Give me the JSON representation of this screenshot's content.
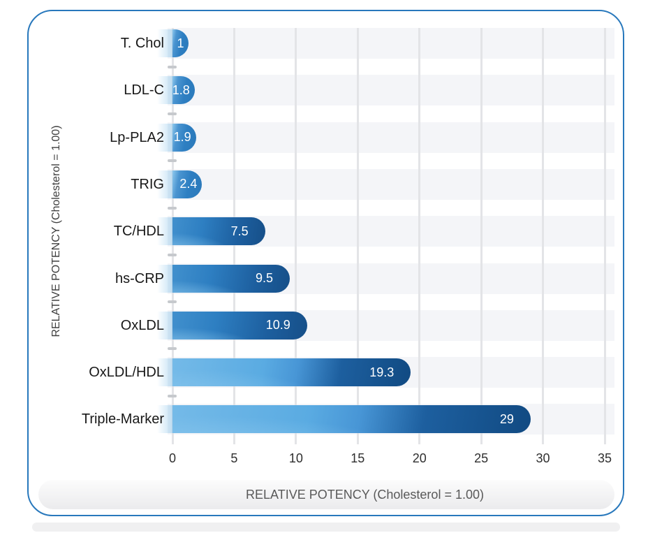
{
  "chart_data": {
    "type": "bar",
    "orientation": "horizontal",
    "title": "",
    "categories": [
      "T. Chol",
      "LDL-C",
      "Lp-PLA2",
      "TRIG",
      "TC/HDL",
      "hs-CRP",
      "OxLDL",
      "OxLDL/HDL",
      "Triple-Marker"
    ],
    "values": [
      1,
      1.8,
      1.9,
      2.4,
      7.5,
      9.5,
      10.9,
      19.3,
      29
    ],
    "value_labels": [
      "1",
      "1.8",
      "1.9",
      "2.4",
      "7.5",
      "9.5",
      "10.9",
      "19.3",
      "29"
    ],
    "xlabel": "RELATIVE POTENCY (Cholesterol = 1.00)",
    "ylabel": "RELATIVE POTENCY (Cholesterol = 1.00)",
    "xlim": [
      0,
      35
    ],
    "x_ticks": [
      0,
      5,
      10,
      15,
      20,
      25,
      30,
      35
    ],
    "grid": "vertical-gridlines-with-alternating-row-bands",
    "legend": "none",
    "value_label_position": "inside-end",
    "value_label_color": "#ffffff"
  },
  "colors": {
    "figure_border": "#2878bc",
    "bar_light_blue": "#8ec9ee",
    "bar_sky_blue": "#5aabe2",
    "bar_mid_blue": "#2e7fc2",
    "bar_deep_blue": "#1d5f9f",
    "bar_dark_navy": "#114a82",
    "row_band": "#f4f5f8",
    "gridline": "#e3e4e7",
    "axis_dash": "#c6c9cd",
    "category_text": "#181818",
    "tick_text": "#2f2f2f",
    "axis_title_text": "#595959",
    "band_background_top": "#fcfcfc",
    "band_background_bottom": "#ebebed"
  }
}
